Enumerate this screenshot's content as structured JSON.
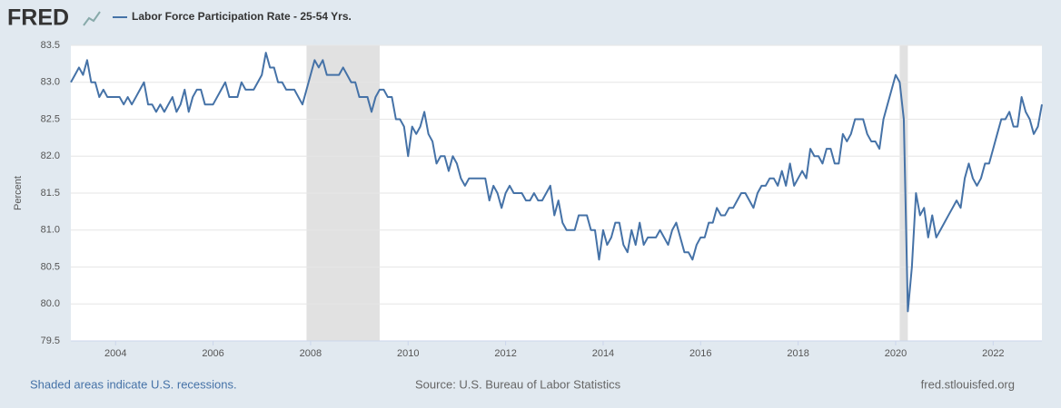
{
  "chart_data": {
    "type": "line",
    "logo": "FRED",
    "y_label": "Percent",
    "recession_note": "Shaded areas indicate U.S. recessions.",
    "source": "Source: U.S. Bureau of Labor Statistics",
    "site": "fred.stlouisfed.org",
    "xlim": [
      2003.083,
      2023.0
    ],
    "xticks": [
      2004,
      2006,
      2008,
      2010,
      2012,
      2014,
      2016,
      2018,
      2020,
      2022
    ],
    "ylim": [
      79.5,
      83.5
    ],
    "yticks": [
      79.5,
      {
        "value": 80,
        "label": "80.0"
      },
      80.5,
      {
        "value": 81,
        "label": "81.0"
      },
      81.5,
      {
        "value": 82,
        "label": "82.0"
      },
      82.5,
      {
        "value": 83,
        "label": "83.0"
      },
      83.5
    ],
    "grid": true,
    "recessions": [
      [
        2007.917,
        2009.417
      ],
      [
        2020.083,
        2020.25
      ]
    ],
    "x": [
      2003.083,
      2003.167,
      2003.25,
      2003.333,
      2003.417,
      2003.5,
      2003.583,
      2003.667,
      2003.75,
      2003.833,
      2003.917,
      2004.0,
      2004.083,
      2004.167,
      2004.25,
      2004.333,
      2004.417,
      2004.5,
      2004.583,
      2004.667,
      2004.75,
      2004.833,
      2004.917,
      2005.0,
      2005.083,
      2005.167,
      2005.25,
      2005.333,
      2005.417,
      2005.5,
      2005.583,
      2005.667,
      2005.75,
      2005.833,
      2005.917,
      2006.0,
      2006.083,
      2006.167,
      2006.25,
      2006.333,
      2006.417,
      2006.5,
      2006.583,
      2006.667,
      2006.75,
      2006.833,
      2006.917,
      2007.0,
      2007.083,
      2007.167,
      2007.25,
      2007.333,
      2007.417,
      2007.5,
      2007.583,
      2007.667,
      2007.75,
      2007.833,
      2007.917,
      2008.0,
      2008.083,
      2008.167,
      2008.25,
      2008.333,
      2008.417,
      2008.5,
      2008.583,
      2008.667,
      2008.75,
      2008.833,
      2008.917,
      2009.0,
      2009.083,
      2009.167,
      2009.25,
      2009.333,
      2009.417,
      2009.5,
      2009.583,
      2009.667,
      2009.75,
      2009.833,
      2009.917,
      2010.0,
      2010.083,
      2010.167,
      2010.25,
      2010.333,
      2010.417,
      2010.5,
      2010.583,
      2010.667,
      2010.75,
      2010.833,
      2010.917,
      2011.0,
      2011.083,
      2011.167,
      2011.25,
      2011.333,
      2011.417,
      2011.5,
      2011.583,
      2011.667,
      2011.75,
      2011.833,
      2011.917,
      2012.0,
      2012.083,
      2012.167,
      2012.25,
      2012.333,
      2012.417,
      2012.5,
      2012.583,
      2012.667,
      2012.75,
      2012.833,
      2012.917,
      2013.0,
      2013.083,
      2013.167,
      2013.25,
      2013.333,
      2013.417,
      2013.5,
      2013.583,
      2013.667,
      2013.75,
      2013.833,
      2013.917,
      2014.0,
      2014.083,
      2014.167,
      2014.25,
      2014.333,
      2014.417,
      2014.5,
      2014.583,
      2014.667,
      2014.75,
      2014.833,
      2014.917,
      2015.0,
      2015.083,
      2015.167,
      2015.25,
      2015.333,
      2015.417,
      2015.5,
      2015.583,
      2015.667,
      2015.75,
      2015.833,
      2015.917,
      2016.0,
      2016.083,
      2016.167,
      2016.25,
      2016.333,
      2016.417,
      2016.5,
      2016.583,
      2016.667,
      2016.75,
      2016.833,
      2016.917,
      2017.0,
      2017.083,
      2017.167,
      2017.25,
      2017.333,
      2017.417,
      2017.5,
      2017.583,
      2017.667,
      2017.75,
      2017.833,
      2017.917,
      2018.0,
      2018.083,
      2018.167,
      2018.25,
      2018.333,
      2018.417,
      2018.5,
      2018.583,
      2018.667,
      2018.75,
      2018.833,
      2018.917,
      2019.0,
      2019.083,
      2019.167,
      2019.25,
      2019.333,
      2019.417,
      2019.5,
      2019.583,
      2019.667,
      2019.75,
      2019.833,
      2019.917,
      2020.0,
      2020.083,
      2020.167,
      2020.25,
      2020.333,
      2020.417,
      2020.5,
      2020.583,
      2020.667,
      2020.75,
      2020.833,
      2020.917,
      2021.0,
      2021.083,
      2021.167,
      2021.25,
      2021.333,
      2021.417,
      2021.5,
      2021.583,
      2021.667,
      2021.75,
      2021.833,
      2021.917,
      2022.0,
      2022.083,
      2022.167,
      2022.25,
      2022.333,
      2022.417,
      2022.5,
      2022.583,
      2022.667,
      2022.75,
      2022.833,
      2022.917,
      2023.0
    ],
    "series": [
      {
        "name": "Labor Force Participation Rate - 25-54 Yrs.",
        "color": "#4572a7",
        "values": [
          83.0,
          83.1,
          83.2,
          83.1,
          83.3,
          83.0,
          83.0,
          82.8,
          82.9,
          82.8,
          82.8,
          82.8,
          82.8,
          82.7,
          82.8,
          82.7,
          82.8,
          82.9,
          83.0,
          82.7,
          82.7,
          82.6,
          82.7,
          82.6,
          82.7,
          82.8,
          82.6,
          82.7,
          82.9,
          82.6,
          82.8,
          82.9,
          82.9,
          82.7,
          82.7,
          82.7,
          82.8,
          82.9,
          83.0,
          82.8,
          82.8,
          82.8,
          83.0,
          82.9,
          82.9,
          82.9,
          83.0,
          83.1,
          83.4,
          83.2,
          83.2,
          83.0,
          83.0,
          82.9,
          82.9,
          82.9,
          82.8,
          82.7,
          82.9,
          83.1,
          83.3,
          83.2,
          83.3,
          83.1,
          83.1,
          83.1,
          83.1,
          83.2,
          83.1,
          83.0,
          83.0,
          82.8,
          82.8,
          82.8,
          82.6,
          82.8,
          82.9,
          82.9,
          82.8,
          82.8,
          82.5,
          82.5,
          82.4,
          82.0,
          82.4,
          82.3,
          82.4,
          82.6,
          82.3,
          82.2,
          81.9,
          82.0,
          82.0,
          81.8,
          82.0,
          81.9,
          81.7,
          81.6,
          81.7,
          81.7,
          81.7,
          81.7,
          81.7,
          81.4,
          81.6,
          81.5,
          81.3,
          81.5,
          81.6,
          81.5,
          81.5,
          81.5,
          81.4,
          81.4,
          81.5,
          81.4,
          81.4,
          81.5,
          81.6,
          81.2,
          81.4,
          81.1,
          81.0,
          81.0,
          81.0,
          81.2,
          81.2,
          81.2,
          81.0,
          81.0,
          80.6,
          81.0,
          80.8,
          80.9,
          81.1,
          81.1,
          80.8,
          80.7,
          81.0,
          80.8,
          81.1,
          80.8,
          80.9,
          80.9,
          80.9,
          81.0,
          80.9,
          80.8,
          81.0,
          81.1,
          80.9,
          80.7,
          80.7,
          80.6,
          80.8,
          80.9,
          80.9,
          81.1,
          81.1,
          81.3,
          81.2,
          81.2,
          81.3,
          81.3,
          81.4,
          81.5,
          81.5,
          81.4,
          81.3,
          81.5,
          81.6,
          81.6,
          81.7,
          81.7,
          81.6,
          81.8,
          81.6,
          81.9,
          81.6,
          81.7,
          81.8,
          81.7,
          82.1,
          82.0,
          82.0,
          81.9,
          82.1,
          82.1,
          81.9,
          81.9,
          82.3,
          82.2,
          82.3,
          82.5,
          82.5,
          82.5,
          82.3,
          82.2,
          82.2,
          82.1,
          82.5,
          82.7,
          82.9,
          83.1,
          83.0,
          82.5,
          79.9,
          80.5,
          81.5,
          81.2,
          81.3,
          80.9,
          81.2,
          80.9,
          81.0,
          81.1,
          81.2,
          81.3,
          81.4,
          81.3,
          81.7,
          81.9,
          81.7,
          81.6,
          81.7,
          81.9,
          81.9,
          82.1,
          82.3,
          82.5,
          82.5,
          82.6,
          82.4,
          82.4,
          82.8,
          82.6,
          82.5,
          82.3,
          82.4,
          82.7
        ]
      }
    ]
  }
}
